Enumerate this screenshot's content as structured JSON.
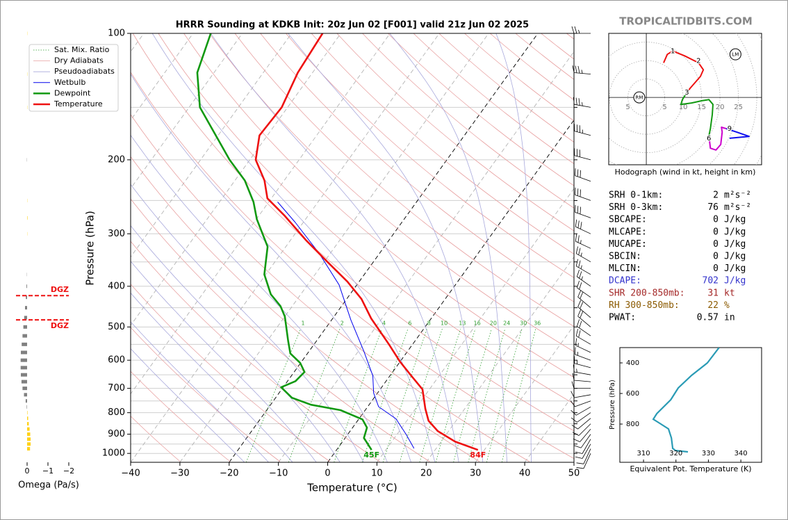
{
  "watermark": "TROPICALTIDBITS.COM",
  "stats": [
    {
      "label": "SRH 0-1km:",
      "value": 2,
      "unit": "m²s⁻²"
    },
    {
      "label": "SRH 0-3km:",
      "value": 76,
      "unit": "m²s⁻²"
    },
    {
      "label": "SBCAPE:",
      "value": 0,
      "unit": "J/kg"
    },
    {
      "label": "MLCAPE:",
      "value": 0,
      "unit": "J/kg"
    },
    {
      "label": "MUCAPE:",
      "value": 0,
      "unit": "J/kg"
    },
    {
      "label": "SBCIN:",
      "value": 0,
      "unit": "J/kg"
    },
    {
      "label": "MLCIN:",
      "value": 0,
      "unit": "J/kg"
    },
    {
      "label": "DCAPE:",
      "value": 702,
      "unit": "J/kg",
      "color": "#3333cc"
    },
    {
      "label": "SHR 200-850mb:",
      "value": 31,
      "unit": "kt",
      "color": "#a52a2a"
    },
    {
      "label": "RH 300-850mb:",
      "value": 22,
      "unit": "%",
      "color": "#8b5a00"
    },
    {
      "label": "PWAT:",
      "value": 0.57,
      "unit": "in"
    }
  ],
  "chart_data": [
    {
      "type": "skewt",
      "title": "HRRR Sounding at KDKB Init: 20z Jun 02 [F001] valid 21z Jun 02 2025",
      "xlabel": "Temperature (°C)",
      "ylabel": "Pressure (hPa)",
      "log_y": true,
      "xlim": [
        -40,
        50
      ],
      "ylim": [
        100,
        1050
      ],
      "xticks": [
        {
          "value": -40,
          "label": "−40"
        },
        {
          "value": -30,
          "label": "−30"
        },
        {
          "value": -20,
          "label": "−20"
        },
        {
          "value": -10,
          "label": "−10"
        },
        0,
        10,
        20,
        30,
        40,
        50
      ],
      "yticks": [
        100,
        200,
        300,
        400,
        500,
        600,
        700,
        800,
        900,
        1000
      ],
      "grid_pressures": [
        100,
        150,
        200,
        250,
        300,
        350,
        400,
        450,
        500,
        550,
        600,
        650,
        700,
        750,
        800,
        850,
        900,
        950,
        1000
      ],
      "isotherms": [
        -100,
        -90,
        -80,
        -70,
        -60,
        -50,
        -40,
        -30,
        -20,
        -10,
        0,
        10,
        20,
        30,
        40
      ],
      "highlight_isotherms": [
        0,
        -20
      ],
      "dry_adiabats_k": [
        230,
        240,
        250,
        260,
        270,
        280,
        290,
        300,
        310,
        320,
        330,
        340,
        350,
        360,
        370,
        380,
        390,
        400,
        410,
        420,
        430,
        440,
        450,
        460,
        470,
        480,
        490,
        500
      ],
      "moist_adiabats_c": [
        -20,
        -15,
        -10,
        -5,
        0,
        5,
        10,
        15,
        20,
        25,
        30,
        35,
        40
      ],
      "mixing_ratios": [
        1,
        2,
        4,
        6,
        8,
        10,
        13,
        16,
        20,
        24,
        30,
        36
      ],
      "legend": "upper left",
      "reference_lines": [
        {
          "name": "Sat. Mix. Ratio",
          "color": "#2e9e2e"
        },
        {
          "name": "Dry Adiabats",
          "color": "#e8a0a0"
        },
        {
          "name": "Pseudoadiabats",
          "color": "#a8a8dc"
        }
      ],
      "series": [
        {
          "name": "Wetbulb",
          "color": "#0000ee",
          "pressure": [
            973,
            902,
            827,
            774,
            718,
            653,
            571,
            481,
            397,
            335,
            282,
            252
          ],
          "values": [
            15.5,
            11.9,
            7.5,
            2.2,
            -0.8,
            -3.5,
            -8.9,
            -16.1,
            -23.6,
            -32.1,
            -41.6,
            -48.2
          ]
        },
        {
          "name": "Dewpoint",
          "color": "#119911",
          "surface_label": "45F",
          "pressure": [
            981,
            919,
            868,
            830,
            789,
            766,
            737,
            696,
            673,
            640,
            609,
            578,
            539,
            472,
            446,
            418,
            375,
            322,
            277,
            252,
            224,
            200,
            150,
            124,
            100
          ],
          "values": [
            7.1,
            3.8,
            2.9,
            0.8,
            -5.0,
            -11.8,
            -16.7,
            -20.4,
            -18.4,
            -17.9,
            -20.1,
            -23.5,
            -25.8,
            -30.0,
            -32.4,
            -36.1,
            -40.3,
            -43.7,
            -49.9,
            -53.1,
            -58.0,
            -64.1,
            -77.8,
            -83.4,
            -86.4
          ]
        },
        {
          "name": "Temperature",
          "color": "#ee1111",
          "surface_label": "84F",
          "pressure": [
            981,
            937,
            885,
            836,
            783,
            704,
            653,
            605,
            550,
            477,
            429,
            390,
            348,
            310,
            272,
            247,
            224,
            200,
            175,
            150,
            124,
            100
          ],
          "values": [
            28.7,
            22.8,
            17.8,
            14.4,
            12.0,
            8.6,
            4.3,
            0.0,
            -4.8,
            -12.2,
            -17.0,
            -22.4,
            -29.7,
            -37.0,
            -44.7,
            -50.8,
            -54.0,
            -58.8,
            -61.6,
            -61.2,
            -63.0,
            -63.7
          ]
        }
      ],
      "wind_barbs": {
        "pressure": [
          100,
          125,
          150,
          175,
          200,
          225,
          250,
          275,
          300,
          325,
          350,
          375,
          400,
          425,
          450,
          475,
          500,
          525,
          550,
          575,
          600,
          625,
          650,
          675,
          700,
          725,
          750,
          775,
          800,
          825,
          850,
          875,
          900,
          925,
          950,
          975,
          1000
        ],
        "speed": [
          25,
          35,
          35,
          35,
          30,
          30,
          30,
          30,
          30,
          25,
          25,
          25,
          25,
          20,
          20,
          20,
          20,
          20,
          20,
          15,
          15,
          15,
          15,
          10,
          10,
          10,
          10,
          10,
          10,
          10,
          10,
          10,
          10,
          10,
          10,
          10,
          10
        ],
        "direction": [
          270,
          275,
          280,
          285,
          285,
          290,
          290,
          290,
          295,
          295,
          300,
          300,
          305,
          305,
          310,
          310,
          310,
          305,
          300,
          295,
          290,
          285,
          280,
          275,
          270,
          260,
          250,
          240,
          235,
          230,
          225,
          220,
          215,
          210,
          210,
          205,
          205
        ]
      }
    },
    {
      "type": "hodograph",
      "caption": "Hodograph (wind in kt, height in km)",
      "xlim": [
        -10.2,
        31.3
      ],
      "ylim": [
        -18.3,
        17.4
      ],
      "rings": [
        5,
        10,
        15,
        20,
        25,
        30,
        35,
        40
      ],
      "ring_labels": [
        {
          "value": -5,
          "label": "5"
        },
        5,
        10,
        15,
        20,
        25
      ],
      "segments": [
        {
          "color": "#ee1111",
          "u": [
            4.7,
            5.7,
            7.2,
            10.4,
            14.2,
            15.5,
            14.7,
            11.9,
            11.0
          ],
          "v": [
            9.4,
            11.7,
            12.6,
            11.3,
            9.4,
            7.5,
            5.7,
            2.5,
            1.3
          ]
        },
        {
          "color": "#119911",
          "u": [
            11.0,
            9.8,
            9.4,
            12.3,
            15.1,
            17.0,
            18.1,
            17.9,
            17.4,
            17.0
          ],
          "v": [
            1.3,
            -0.6,
            -1.9,
            -1.5,
            -0.9,
            -0.6,
            -1.9,
            -4.7,
            -8.5,
            -10.4
          ]
        },
        {
          "color": "#cc00cc",
          "u": [
            17.0,
            17.4,
            18.9,
            20.2,
            20.6,
            20.4,
            21.7
          ],
          "v": [
            -10.4,
            -13.8,
            -14.3,
            -12.8,
            -9.4,
            -8.1,
            -8.5
          ]
        },
        {
          "color": "#1010ee",
          "u": [
            21.7,
            24.5,
            27.9,
            22.6
          ],
          "v": [
            -8.5,
            -9.4,
            -10.6,
            -11.1
          ]
        }
      ],
      "height_labels": [
        {
          "label": "1",
          "u": 7.2,
          "v": 12.6
        },
        {
          "label": "2",
          "u": 14.2,
          "v": 9.9
        },
        {
          "label": "3",
          "u": 11.0,
          "v": 1.3
        },
        {
          "label": "6",
          "u": 17.0,
          "v": -11.1
        },
        {
          "label": "9",
          "u": 22.6,
          "v": -8.5
        }
      ],
      "storm_motion": [
        {
          "label": "RM",
          "u": -1.9,
          "v": 0.0
        },
        {
          "label": "LM",
          "u": 24.2,
          "v": 11.7
        }
      ]
    },
    {
      "type": "line",
      "xlabel": "Equivalent Pot. Temperature (K)",
      "ylabel": "Pressure (hPa)",
      "xlim": [
        302.7,
        346.4
      ],
      "ylim": [
        1050,
        300
      ],
      "xticks": [
        310,
        320,
        330,
        340
      ],
      "yticks": [
        400,
        600,
        800
      ],
      "series": [
        {
          "color": "#2a9bb5",
          "pressure": [
            300,
            400,
            482,
            564,
            641,
            732,
            768,
            791,
            832,
            891,
            959,
            973,
            982
          ],
          "values": [
            333.3,
            329.7,
            324.8,
            320.7,
            318.4,
            314.1,
            313.0,
            314.7,
            317.7,
            318.6,
            319.0,
            319.9,
            323.7
          ]
        }
      ]
    },
    {
      "type": "bar",
      "orientation": "horizontal",
      "xlabel": "Omega (Pa/s)",
      "xlim": [
        0.35,
        -2
      ],
      "ylim": [
        100,
        1050
      ],
      "xticks": [
        0,
        {
          "value": -1,
          "label": "−1"
        },
        {
          "value": -2,
          "label": "−2"
        }
      ],
      "positive_color": "#808080",
      "negative_color": "#ffd21a",
      "pressure": [
        100,
        125,
        150,
        175,
        200,
        225,
        250,
        275,
        300,
        325,
        350,
        375,
        400,
        425,
        450,
        475,
        500,
        525,
        550,
        575,
        600,
        625,
        650,
        675,
        700,
        725,
        750,
        775,
        800,
        825,
        850,
        875,
        900,
        925,
        950,
        975,
        1000
      ],
      "values": [
        -0.01,
        -0.01,
        -0.01,
        0,
        0.01,
        0,
        -0.01,
        -0.02,
        -0.01,
        0,
        0,
        0.01,
        0.03,
        0.06,
        0.1,
        0.14,
        0.18,
        0.22,
        0.26,
        0.3,
        0.31,
        0.31,
        0.3,
        0.27,
        0.22,
        0.15,
        0.07,
        0.02,
        -0.02,
        -0.05,
        -0.08,
        -0.12,
        -0.15,
        -0.17,
        -0.17,
        -0.14,
        0
      ],
      "dgz": [
        {
          "pressure": 421,
          "label": "DGZ"
        },
        {
          "pressure": 481,
          "label": "DGZ"
        }
      ]
    }
  ]
}
